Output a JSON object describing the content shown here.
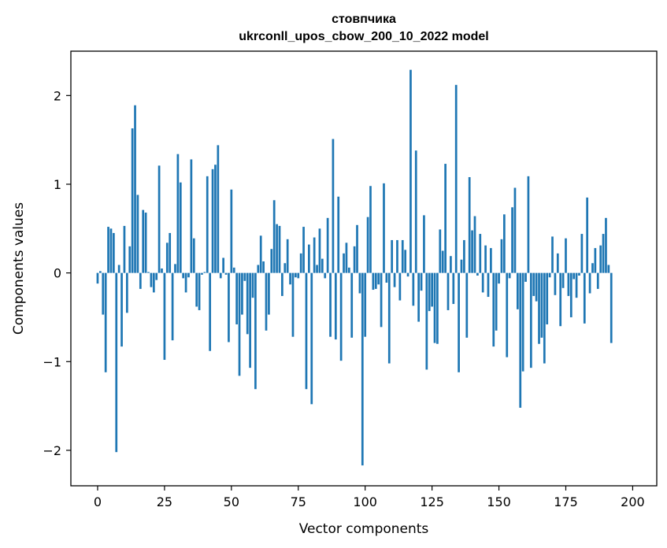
{
  "chart_data": {
    "type": "bar",
    "title_line1": "стовпчика",
    "title_line2": "ukrconll_upos_cbow_200_10_2022 model",
    "xlabel": "Vector components",
    "ylabel": "Components values",
    "xlim": [
      -10,
      209
    ],
    "ylim": [
      -2.4,
      2.5
    ],
    "xticks": [
      0,
      25,
      50,
      75,
      100,
      125,
      150,
      175,
      200
    ],
    "yticks": [
      -2,
      -1,
      0,
      1,
      2
    ],
    "ytick_labels": [
      "−2",
      "−1",
      "0",
      "1",
      "2"
    ],
    "grid": false,
    "bar_color": "#1f77b4",
    "values": [
      -0.12,
      0.02,
      -0.47,
      -1.12,
      0.52,
      0.5,
      0.45,
      -2.02,
      0.09,
      -0.83,
      0.53,
      -0.45,
      0.3,
      1.63,
      1.89,
      0.88,
      -0.18,
      0.71,
      0.68,
      0.01,
      -0.16,
      -0.22,
      -0.08,
      1.21,
      0.05,
      -0.98,
      0.34,
      0.45,
      -0.76,
      0.1,
      1.34,
      1.02,
      -0.06,
      -0.22,
      -0.05,
      1.28,
      0.39,
      -0.38,
      -0.42,
      -0.02,
      0.01,
      1.09,
      -0.88,
      1.17,
      1.22,
      1.44,
      -0.06,
      0.17,
      -0.02,
      -0.78,
      0.94,
      0.06,
      -0.58,
      -1.16,
      -0.47,
      -0.09,
      -0.69,
      -1.07,
      -0.28,
      -1.31,
      0.09,
      0.42,
      0.13,
      -0.65,
      -0.47,
      0.27,
      0.82,
      0.55,
      0.53,
      -0.26,
      0.11,
      0.38,
      -0.13,
      -0.72,
      -0.05,
      -0.06,
      0.22,
      0.52,
      -1.31,
      0.32,
      -1.48,
      0.4,
      0.09,
      0.5,
      0.16,
      -0.06,
      0.62,
      -0.72,
      1.51,
      -0.75,
      0.86,
      -0.99,
      0.22,
      0.34,
      0.06,
      -0.73,
      0.3,
      0.54,
      -0.23,
      -2.17,
      -0.72,
      0.63,
      0.98,
      -0.19,
      -0.18,
      -0.13,
      -0.61,
      1.01,
      -0.11,
      -1.02,
      0.37,
      -0.16,
      0.37,
      -0.31,
      0.37,
      0.26,
      -0.04,
      2.29,
      -0.37,
      1.38,
      -0.55,
      -0.2,
      0.65,
      -1.09,
      -0.43,
      -0.38,
      -0.79,
      -0.8,
      0.49,
      0.25,
      1.23,
      -0.42,
      0.19,
      -0.35,
      2.12,
      -1.12,
      0.15,
      0.37,
      -0.73,
      1.08,
      0.48,
      0.64,
      -0.03,
      0.44,
      -0.22,
      0.31,
      -0.27,
      0.28,
      -0.83,
      -0.65,
      -0.12,
      0.38,
      0.66,
      -0.95,
      -0.06,
      0.74,
      0.96,
      -0.41,
      -1.52,
      -1.11,
      -0.1,
      1.09,
      -1.07,
      -0.26,
      -0.32,
      -0.8,
      -0.73,
      -1.02,
      -0.58,
      -0.05,
      0.41,
      -0.25,
      0.22,
      -0.6,
      -0.17,
      0.39,
      -0.26,
      -0.5,
      -0.07,
      -0.28,
      -0.03,
      0.44,
      -0.57,
      0.85,
      -0.23,
      0.11,
      0.28,
      -0.18,
      0.31,
      0.44,
      0.62,
      0.09,
      -0.79
    ]
  }
}
